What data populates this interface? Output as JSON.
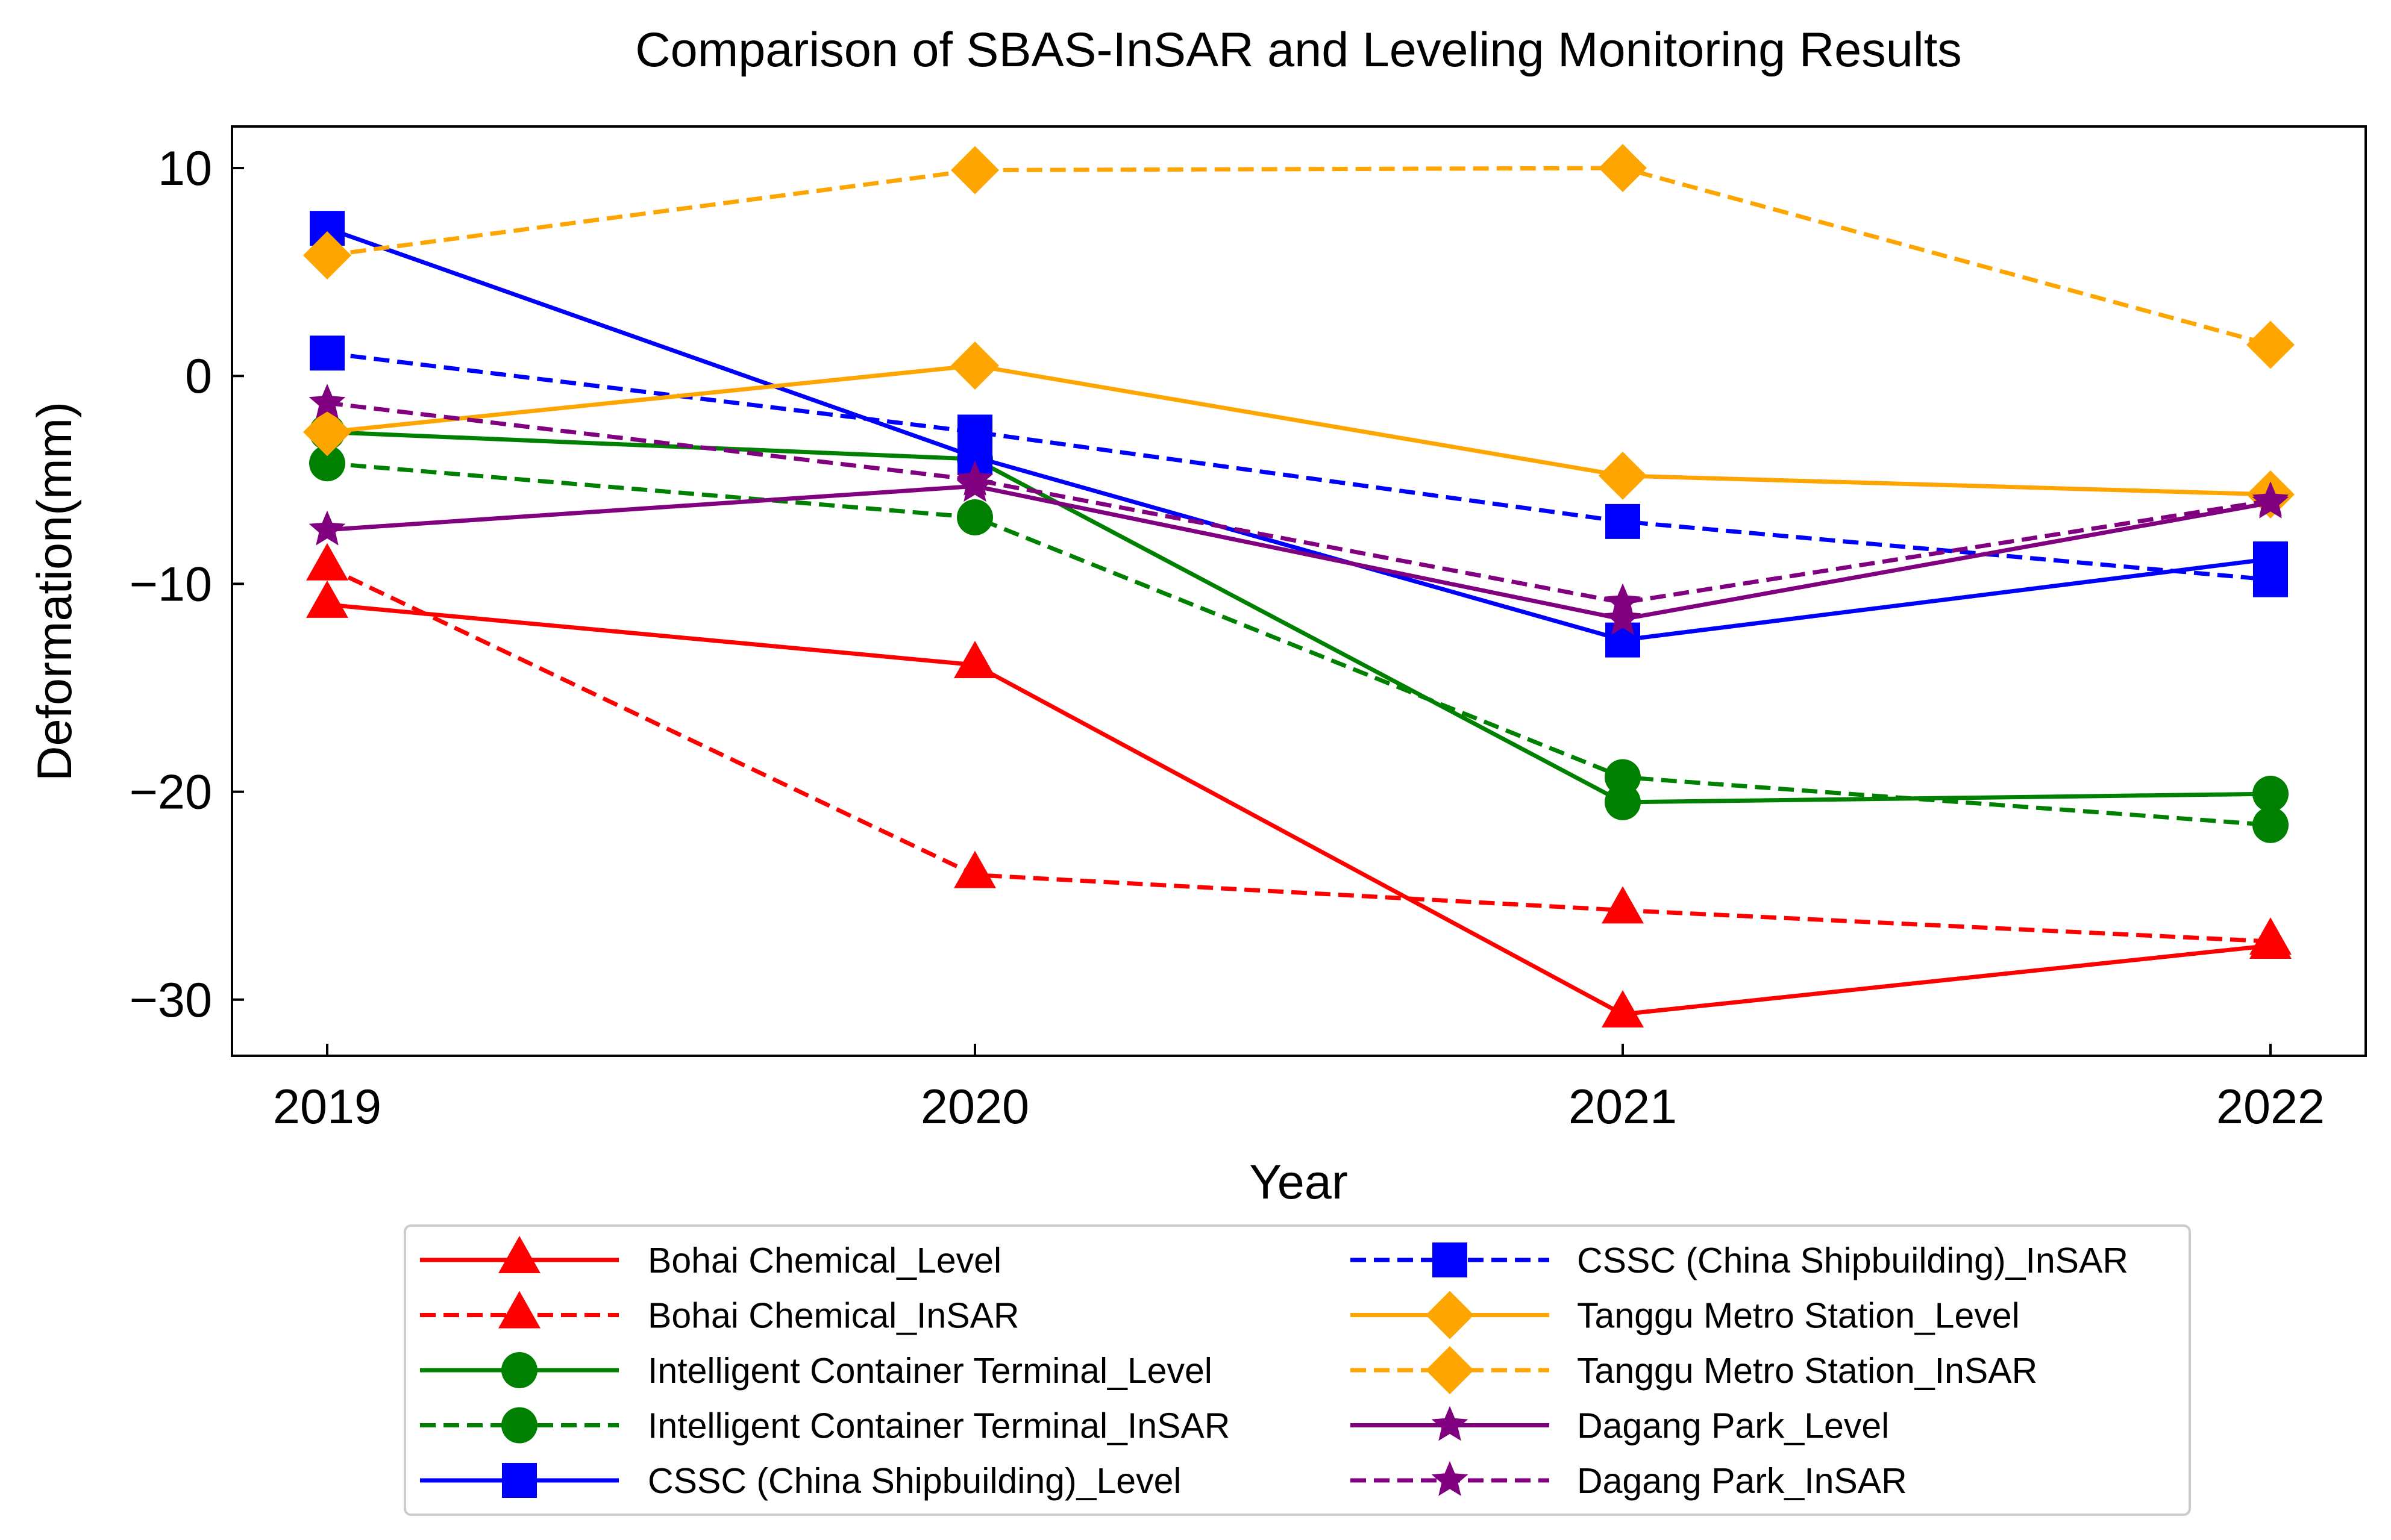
{
  "chart_data": {
    "type": "line",
    "title": "Comparison of SBAS-InSAR and Leveling Monitoring Results",
    "xlabel": "Year",
    "ylabel": "Deformation(mm)",
    "x": [
      "2019",
      "2020",
      "2021",
      "2022"
    ],
    "ylim": [
      -32.7,
      12.0
    ],
    "yticks": [
      10,
      0,
      -10,
      -20,
      -30
    ],
    "ytick_labels": [
      "10",
      "0",
      "−10",
      "−20",
      "−30"
    ],
    "grid": false,
    "legend_position": "bottom-center, two columns",
    "series": [
      {
        "name": "Bohai Chemical_Level",
        "color": "#ff0000",
        "dash": "solid",
        "marker": "triangle",
        "values": [
          -11.0,
          -13.9,
          -30.7,
          -27.4
        ]
      },
      {
        "name": "Bohai Chemical_InSAR",
        "color": "#ff0000",
        "dash": "dashed",
        "marker": "triangle",
        "values": [
          -9.2,
          -24.0,
          -25.7,
          -27.2
        ]
      },
      {
        "name": "Intelligent Container Terminal_Level",
        "color": "#008000",
        "dash": "solid",
        "marker": "circle",
        "values": [
          -2.7,
          -4.0,
          -20.5,
          -20.1
        ]
      },
      {
        "name": "Intelligent Container Terminal_InSAR",
        "color": "#008000",
        "dash": "dashed",
        "marker": "circle",
        "values": [
          -4.2,
          -6.8,
          -19.3,
          -21.6
        ]
      },
      {
        "name": "CSSC (China Shipbuilding)_Level",
        "color": "#0000ff",
        "dash": "solid",
        "marker": "square",
        "values": [
          7.1,
          -3.9,
          -12.7,
          -8.8
        ]
      },
      {
        "name": "CSSC (China Shipbuilding)_InSAR",
        "color": "#0000ff",
        "dash": "dashed",
        "marker": "square",
        "values": [
          1.1,
          -2.7,
          -7.0,
          -9.8
        ]
      },
      {
        "name": "Tanggu Metro Station_Level",
        "color": "#ffa500",
        "dash": "solid",
        "marker": "diamond",
        "values": [
          -2.7,
          0.5,
          -4.8,
          -5.7
        ]
      },
      {
        "name": "Tanggu Metro Station_InSAR",
        "color": "#ffa500",
        "dash": "dashed",
        "marker": "diamond",
        "values": [
          5.8,
          9.9,
          10.0,
          1.5
        ]
      },
      {
        "name": "Dagang Park_Level",
        "color": "#800080",
        "dash": "solid",
        "marker": "star",
        "values": [
          -7.4,
          -5.3,
          -11.7,
          -6.1
        ]
      },
      {
        "name": "Dagang Park_InSAR",
        "color": "#800080",
        "dash": "dashed",
        "marker": "star",
        "values": [
          -1.3,
          -5.0,
          -10.9,
          -6.0
        ]
      }
    ]
  }
}
